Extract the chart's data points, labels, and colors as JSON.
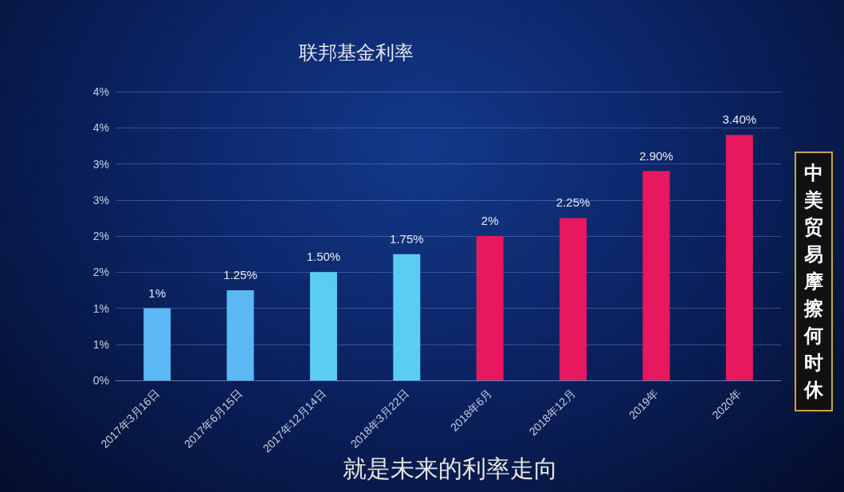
{
  "chart_data": {
    "type": "bar",
    "title": "联邦基金利率",
    "categories": [
      "2017年3月16日",
      "2017年6月15日",
      "2017年12月14日",
      "2018年3月22日",
      "2018年6月",
      "2018年12月",
      "2019年",
      "2020年"
    ],
    "values": [
      1,
      1.25,
      1.5,
      1.75,
      2,
      2.25,
      2.9,
      3.4
    ],
    "colors": [
      "#5cb8f2",
      "#5cb8f2",
      "#5ccdf2",
      "#5ccdf2",
      "#e8185f",
      "#e8185f",
      "#e8185f",
      "#e8185f"
    ],
    "value_labels": [
      "1%",
      "1.25%",
      "1.50%",
      "1.75%",
      "2%",
      "2.25%",
      "2.90%",
      "3.40%"
    ],
    "ylim": [
      0,
      4
    ],
    "yticks": [
      {
        "value": 0,
        "label": "0%"
      },
      {
        "value": 0.5,
        "label": "1%"
      },
      {
        "value": 1,
        "label": "1%"
      },
      {
        "value": 1.5,
        "label": "2%"
      },
      {
        "value": 2,
        "label": "2%"
      },
      {
        "value": 2.5,
        "label": "3%"
      },
      {
        "value": 3,
        "label": "3%"
      },
      {
        "value": 3.5,
        "label": "4%"
      },
      {
        "value": 4,
        "label": "4%"
      }
    ],
    "grid": "y",
    "annotations": [
      "就是未来的利率走向",
      "中美贸易摩擦何时休"
    ]
  }
}
